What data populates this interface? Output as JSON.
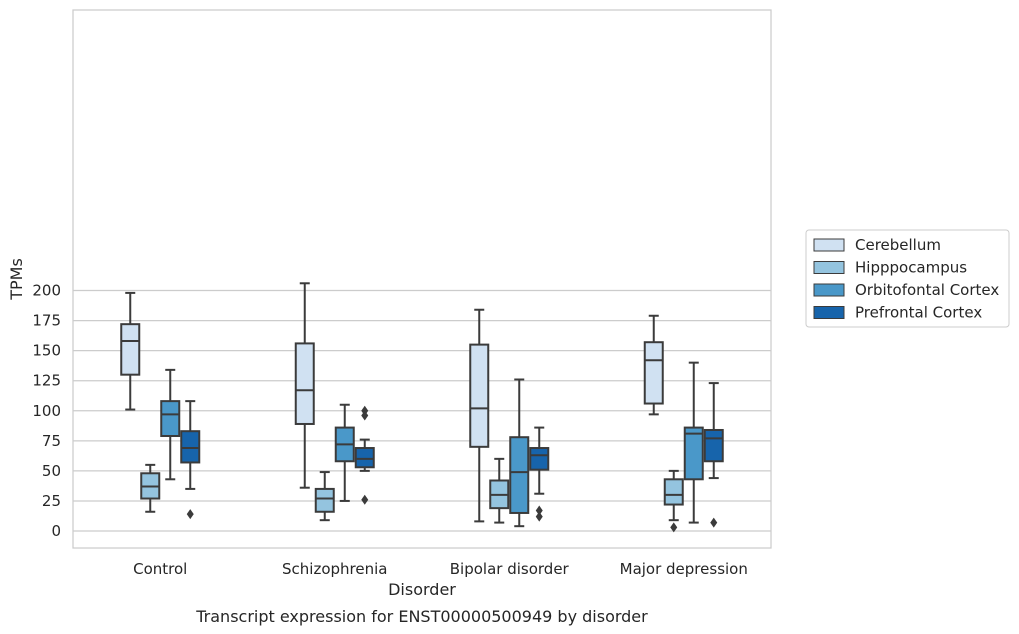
{
  "chart_data": {
    "type": "box",
    "caption": "Transcript expression for ENST00000500949 by disorder",
    "xlabel": "Disorder",
    "ylabel": "TPMs",
    "ylim": [
      -7,
      217
    ],
    "yticks": [
      0,
      25,
      50,
      75,
      100,
      125,
      150,
      175,
      200
    ],
    "grid": true,
    "legend_position": "right",
    "categories": [
      "Control",
      "Schizophrenia",
      "Bipolar disorder",
      "Major depression"
    ],
    "series": [
      {
        "name": "Cerebellum",
        "color": "#d0e1f2",
        "boxes": [
          {
            "whislo": 101,
            "q1": 130,
            "med": 158,
            "q3": 172,
            "whishi": 198,
            "fliers": []
          },
          {
            "whislo": 36,
            "q1": 89,
            "med": 117,
            "q3": 156,
            "whishi": 206,
            "fliers": []
          },
          {
            "whislo": 8,
            "q1": 70,
            "med": 102,
            "q3": 155,
            "whishi": 184,
            "fliers": []
          },
          {
            "whislo": 97,
            "q1": 106,
            "med": 142,
            "q3": 157,
            "whishi": 179,
            "fliers": []
          }
        ]
      },
      {
        "name": "Hipppocampus",
        "color": "#94c4df",
        "boxes": [
          {
            "whislo": 16,
            "q1": 27,
            "med": 37,
            "q3": 48,
            "whishi": 55,
            "fliers": []
          },
          {
            "whislo": 9,
            "q1": 16,
            "med": 27,
            "q3": 35,
            "whishi": 49,
            "fliers": []
          },
          {
            "whislo": 7,
            "q1": 19,
            "med": 30,
            "q3": 42,
            "whishi": 60,
            "fliers": []
          },
          {
            "whislo": 9,
            "q1": 22,
            "med": 30,
            "q3": 43,
            "whishi": 50,
            "fliers": [
              3
            ]
          }
        ]
      },
      {
        "name": "Orbitofontal Cortex",
        "color": "#4a98c9",
        "boxes": [
          {
            "whislo": 43,
            "q1": 79,
            "med": 97,
            "q3": 108,
            "whishi": 134,
            "fliers": []
          },
          {
            "whislo": 25,
            "q1": 58,
            "med": 72,
            "q3": 86,
            "whishi": 105,
            "fliers": []
          },
          {
            "whislo": 4,
            "q1": 15,
            "med": 49,
            "q3": 78,
            "whishi": 126,
            "fliers": []
          },
          {
            "whislo": 7,
            "q1": 43,
            "med": 81,
            "q3": 86,
            "whishi": 140,
            "fliers": []
          }
        ]
      },
      {
        "name": "Prefrontal Cortex",
        "color": "#1764ab",
        "boxes": [
          {
            "whislo": 35,
            "q1": 57,
            "med": 69,
            "q3": 83,
            "whishi": 108,
            "fliers": [
              14
            ]
          },
          {
            "whislo": 50,
            "q1": 53,
            "med": 60,
            "q3": 69,
            "whishi": 76,
            "fliers": [
              100,
              96,
              26
            ]
          },
          {
            "whislo": 31,
            "q1": 51,
            "med": 63,
            "q3": 69,
            "whishi": 86,
            "fliers": [
              17,
              12
            ]
          },
          {
            "whislo": 44,
            "q1": 58,
            "med": 77,
            "q3": 84,
            "whishi": 123,
            "fliers": [
              7
            ]
          }
        ]
      }
    ]
  }
}
